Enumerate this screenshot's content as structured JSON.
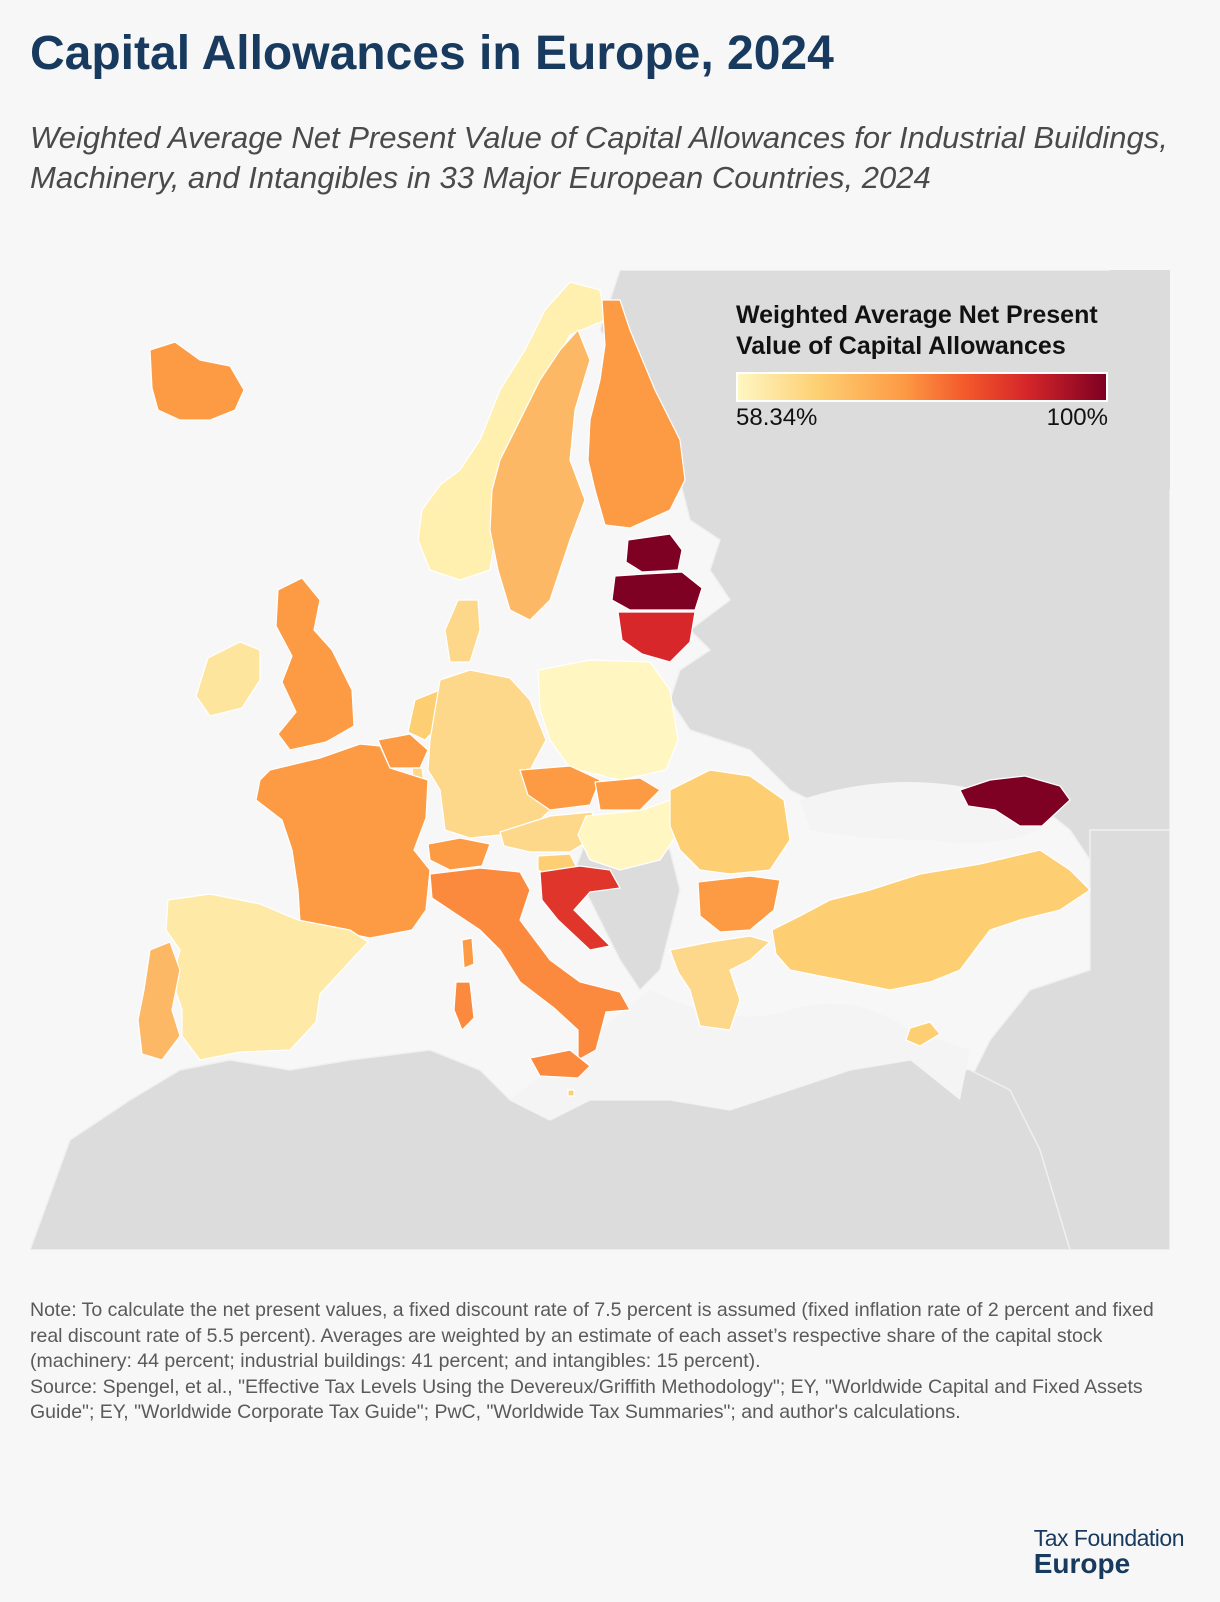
{
  "header": {
    "title": "Capital Allowances in Europe, 2024",
    "subtitle": "Weighted Average Net Present Value of Capital Allowances for Industrial Buildings, Machinery, and Intangibles in 33 Major European Countries, 2024"
  },
  "legend": {
    "title": "Weighted Average Net Present Value of Capital Allowances",
    "min_label": "58.34%",
    "max_label": "100%",
    "min_value": 58.34,
    "max_value": 100,
    "colors": [
      "#fff6c2",
      "#fdcf72",
      "#fd9a44",
      "#f3582b",
      "#d7272a",
      "#7e0022"
    ]
  },
  "map": {
    "no_data_color": "#dcdcdc",
    "sea_color": "#f4f4f4",
    "countries": [
      {
        "name": "Iceland",
        "color": "#fd9a44"
      },
      {
        "name": "Norway",
        "color": "#fff0b0"
      },
      {
        "name": "Sweden",
        "color": "#fdb866"
      },
      {
        "name": "Finland",
        "color": "#fd9a44"
      },
      {
        "name": "Estonia",
        "color": "#7e0022"
      },
      {
        "name": "Latvia",
        "color": "#7e0022"
      },
      {
        "name": "Lithuania",
        "color": "#d7272a"
      },
      {
        "name": "Denmark",
        "color": "#fdd88a"
      },
      {
        "name": "Ireland",
        "color": "#fee59e"
      },
      {
        "name": "United Kingdom",
        "color": "#fd9a44"
      },
      {
        "name": "Netherlands",
        "color": "#fdcf72"
      },
      {
        "name": "Belgium",
        "color": "#fd9a44"
      },
      {
        "name": "Luxembourg",
        "color": "#fdd88a"
      },
      {
        "name": "Germany",
        "color": "#fdd88a"
      },
      {
        "name": "Poland",
        "color": "#fff6c2"
      },
      {
        "name": "Czech Republic",
        "color": "#fd9a44"
      },
      {
        "name": "Slovakia",
        "color": "#fd9a44"
      },
      {
        "name": "Austria",
        "color": "#fdd88a"
      },
      {
        "name": "Switzerland",
        "color": "#fd9a44"
      },
      {
        "name": "Hungary",
        "color": "#fff6c2"
      },
      {
        "name": "Slovenia",
        "color": "#fdcf72"
      },
      {
        "name": "Croatia",
        "color": "#e0352a"
      },
      {
        "name": "France",
        "color": "#fd9a44"
      },
      {
        "name": "Spain",
        "color": "#fee9a6"
      },
      {
        "name": "Portugal",
        "color": "#fdb866"
      },
      {
        "name": "Italy",
        "color": "#fc8a3e"
      },
      {
        "name": "Romania",
        "color": "#fdcf72"
      },
      {
        "name": "Bulgaria",
        "color": "#fd9a44"
      },
      {
        "name": "Greece",
        "color": "#fdd88a"
      },
      {
        "name": "Turkey",
        "color": "#fdcf72"
      },
      {
        "name": "Georgia",
        "color": "#7e0022"
      },
      {
        "name": "Cyprus",
        "color": "#fdcf72"
      },
      {
        "name": "Malta",
        "color": "#fdcf72"
      }
    ]
  },
  "note": {
    "text": "Note: To calculate the net present values, a fixed discount rate of 7.5 percent is assumed (fixed inflation rate of 2 percent and fixed real discount rate of 5.5 percent). Averages are weighted by an estimate of each asset’s respective share of the capital stock (machinery: 44 percent; industrial buildings: 41 percent; and intangibles: 15 percent).",
    "source": "Source: Spengel, et al., \"Effective Tax Levels Using the Devereux/Griffith Methodology\"; EY, \"Worldwide Capital and Fixed Assets Guide\"; EY, \"Worldwide Corporate Tax Guide\"; PwC, \"Worldwide Tax Summaries\"; and author's calculations."
  },
  "logo": {
    "line1": "Tax Foundation",
    "line2": "Europe"
  }
}
